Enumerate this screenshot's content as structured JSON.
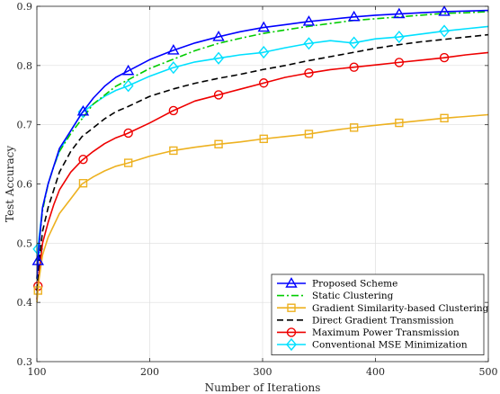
{
  "chart_data": {
    "type": "line",
    "title": "",
    "xlabel": "Number of Iterations",
    "ylabel": "Test Accuracy",
    "xlim": [
      100,
      500
    ],
    "ylim": [
      0.3,
      0.9
    ],
    "xticks": [
      100,
      200,
      300,
      400,
      500
    ],
    "xtick_labels": [
      "100",
      "200",
      "300",
      "400",
      "500"
    ],
    "yticks": [
      0.3,
      0.4,
      0.5,
      0.6,
      0.7,
      0.8,
      0.9
    ],
    "ytick_labels": [
      "0.3",
      "0.4",
      "0.5",
      "0.6",
      "0.7",
      "0.8",
      "0.9"
    ],
    "grid": true,
    "legend_position": "bottom-right",
    "x": [
      100,
      102,
      105,
      110,
      115,
      120,
      130,
      140,
      150,
      160,
      170,
      180,
      200,
      220,
      240,
      260,
      280,
      300,
      320,
      340,
      360,
      380,
      400,
      420,
      440,
      460,
      480,
      500
    ],
    "series": [
      {
        "name": "Proposed Scheme",
        "color": "#0000ff",
        "style": "solid",
        "marker": "triangle",
        "values": [
          0.44,
          0.5,
          0.56,
          0.6,
          0.63,
          0.66,
          0.69,
          0.72,
          0.745,
          0.765,
          0.78,
          0.79,
          0.81,
          0.825,
          0.838,
          0.848,
          0.857,
          0.864,
          0.869,
          0.874,
          0.878,
          0.882,
          0.885,
          0.887,
          0.889,
          0.891,
          0.892,
          0.893
        ],
        "marker_x": [
          101,
          141,
          181,
          221,
          261,
          301,
          341,
          381,
          421,
          461
        ]
      },
      {
        "name": "Static Clustering",
        "color": "#00cc00",
        "style": "dashdot",
        "marker": "none",
        "values": [
          0.44,
          0.5,
          0.555,
          0.6,
          0.63,
          0.655,
          0.685,
          0.71,
          0.735,
          0.75,
          0.765,
          0.775,
          0.795,
          0.81,
          0.825,
          0.837,
          0.846,
          0.854,
          0.86,
          0.866,
          0.871,
          0.876,
          0.879,
          0.882,
          0.885,
          0.888,
          0.889,
          0.891
        ],
        "marker_x": []
      },
      {
        "name": "Gradient Similarity-based Clustering",
        "color": "#edb120",
        "style": "solid",
        "marker": "square",
        "values": [
          0.4,
          0.44,
          0.48,
          0.51,
          0.53,
          0.55,
          0.575,
          0.6,
          0.612,
          0.622,
          0.63,
          0.635,
          0.647,
          0.656,
          0.662,
          0.667,
          0.671,
          0.676,
          0.68,
          0.684,
          0.69,
          0.695,
          0.699,
          0.703,
          0.707,
          0.711,
          0.714,
          0.717
        ],
        "marker_x": [
          101,
          141,
          181,
          221,
          261,
          301,
          341,
          381,
          421,
          461
        ]
      },
      {
        "name": "Direct Gradient Transmission",
        "color": "#000000",
        "style": "dashed",
        "marker": "none",
        "values": [
          0.42,
          0.47,
          0.52,
          0.56,
          0.59,
          0.62,
          0.655,
          0.68,
          0.695,
          0.71,
          0.722,
          0.73,
          0.748,
          0.76,
          0.77,
          0.778,
          0.785,
          0.793,
          0.8,
          0.808,
          0.815,
          0.822,
          0.829,
          0.835,
          0.84,
          0.844,
          0.848,
          0.852
        ],
        "marker_x": []
      },
      {
        "name": "Maximum Power Transmission",
        "color": "#ee0000",
        "style": "solid",
        "marker": "circle",
        "values": [
          0.405,
          0.45,
          0.5,
          0.535,
          0.565,
          0.59,
          0.62,
          0.64,
          0.655,
          0.668,
          0.678,
          0.685,
          0.703,
          0.723,
          0.74,
          0.75,
          0.76,
          0.77,
          0.78,
          0.787,
          0.793,
          0.797,
          0.801,
          0.805,
          0.809,
          0.813,
          0.818,
          0.822
        ],
        "marker_x": [
          101,
          141,
          181,
          221,
          261,
          301,
          341,
          381,
          421,
          461
        ]
      },
      {
        "name": "Conventional MSE Minimization",
        "color": "#00e0ff",
        "style": "solid",
        "marker": "diamond",
        "values": [
          0.47,
          0.51,
          0.56,
          0.6,
          0.63,
          0.655,
          0.69,
          0.72,
          0.735,
          0.748,
          0.758,
          0.765,
          0.782,
          0.796,
          0.806,
          0.812,
          0.818,
          0.822,
          0.83,
          0.837,
          0.842,
          0.838,
          0.845,
          0.848,
          0.853,
          0.858,
          0.862,
          0.866
        ],
        "marker_x": [
          101,
          141,
          181,
          221,
          261,
          301,
          341,
          381,
          421,
          461
        ]
      }
    ]
  }
}
